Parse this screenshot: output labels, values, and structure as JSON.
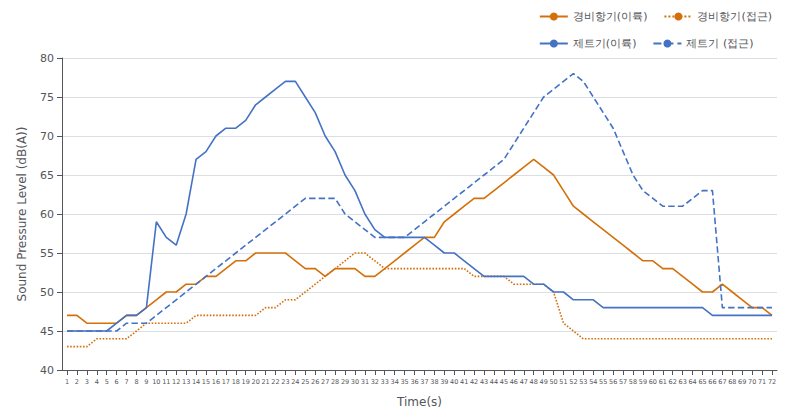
{
  "chart_data": {
    "type": "line",
    "xlabel": "Time(s)",
    "ylabel": "Sound Pressure Level (dB(A))",
    "x": [
      1,
      2,
      3,
      4,
      5,
      6,
      7,
      8,
      9,
      10,
      11,
      12,
      13,
      14,
      15,
      16,
      17,
      18,
      19,
      20,
      21,
      22,
      23,
      24,
      25,
      26,
      27,
      28,
      29,
      30,
      31,
      32,
      33,
      34,
      35,
      36,
      37,
      38,
      39,
      40,
      41,
      42,
      43,
      44,
      45,
      46,
      47,
      48,
      49,
      50,
      51,
      52,
      53,
      54,
      55,
      56,
      57,
      58,
      59,
      60,
      61,
      62,
      63,
      64,
      65,
      66,
      67,
      68,
      69,
      70,
      71,
      72
    ],
    "xlim": [
      0.5,
      72.5
    ],
    "xticks": [
      1,
      2,
      3,
      4,
      5,
      6,
      7,
      8,
      9,
      10,
      11,
      12,
      13,
      14,
      15,
      16,
      17,
      18,
      19,
      20,
      21,
      22,
      23,
      24,
      25,
      26,
      27,
      28,
      29,
      30,
      31,
      32,
      33,
      34,
      35,
      36,
      37,
      38,
      39,
      40,
      41,
      42,
      43,
      44,
      45,
      46,
      47,
      48,
      49,
      50,
      51,
      52,
      53,
      54,
      55,
      56,
      57,
      58,
      59,
      60,
      61,
      62,
      63,
      64,
      65,
      66,
      67,
      68,
      69,
      70,
      71,
      72
    ],
    "ylim": [
      40,
      80
    ],
    "yticks": [
      40,
      45,
      50,
      55,
      60,
      65,
      70,
      75,
      80
    ],
    "grid": true,
    "legend": "upper right",
    "series": [
      {
        "name": "경비항기(이륙)",
        "color": "#D4700A",
        "line_style": "solid",
        "values": [
          47,
          47,
          46,
          46,
          46,
          46,
          47,
          47,
          48,
          49,
          50,
          50,
          51,
          51,
          52,
          52,
          53,
          54,
          54,
          55,
          55,
          55,
          55,
          54,
          53,
          53,
          52,
          53,
          53,
          53,
          52,
          52,
          53,
          54,
          55,
          56,
          57,
          57,
          59,
          60,
          61,
          62,
          62,
          63,
          64,
          65,
          66,
          67,
          66,
          65,
          63,
          61,
          60,
          59,
          58,
          57,
          56,
          55,
          54,
          54,
          53,
          53,
          52,
          51,
          50,
          50,
          51,
          50,
          49,
          48,
          48,
          47
        ]
      },
      {
        "name": "경비항기(접근)",
        "color": "#D4700A",
        "line_style": "dotted",
        "values": [
          43,
          43,
          43,
          44,
          44,
          44,
          44,
          45,
          46,
          46,
          46,
          46,
          46,
          47,
          47,
          47,
          47,
          47,
          47,
          47,
          48,
          48,
          49,
          49,
          50,
          51,
          52,
          53,
          54,
          55,
          55,
          54,
          53,
          53,
          53,
          53,
          53,
          53,
          53,
          53,
          53,
          52,
          52,
          52,
          52,
          51,
          51,
          51,
          51,
          50,
          46,
          45,
          44,
          44,
          44,
          44,
          44,
          44,
          44,
          44,
          44,
          44,
          44,
          44,
          44,
          44,
          44,
          44,
          44,
          44,
          44,
          44
        ]
      },
      {
        "name": "제트기(이륙)",
        "color": "#4472C4",
        "line_style": "solid",
        "values": [
          45,
          45,
          45,
          45,
          45,
          46,
          47,
          47,
          48,
          59,
          57,
          56,
          60,
          67,
          68,
          70,
          71,
          71,
          72,
          74,
          75,
          76,
          77,
          77,
          75,
          73,
          70,
          68,
          65,
          63,
          60,
          58,
          57,
          57,
          57,
          57,
          57,
          56,
          55,
          55,
          54,
          53,
          52,
          52,
          52,
          52,
          52,
          51,
          51,
          50,
          50,
          49,
          49,
          49,
          48,
          48,
          48,
          48,
          48,
          48,
          48,
          48,
          48,
          48,
          48,
          47,
          47,
          47,
          47,
          47,
          47,
          47
        ]
      },
      {
        "name": "제트기 (접근)",
        "color": "#4472C4",
        "line_style": "dashed",
        "values": [
          45,
          45,
          45,
          45,
          45,
          45,
          46,
          46,
          46,
          47,
          48,
          49,
          50,
          51,
          52,
          53,
          54,
          55,
          56,
          57,
          58,
          59,
          60,
          61,
          62,
          62,
          62,
          62,
          60,
          59,
          58,
          57,
          57,
          57,
          57,
          58,
          59,
          60,
          61,
          62,
          63,
          64,
          65,
          66,
          67,
          69,
          71,
          73,
          75,
          76,
          77,
          78,
          77,
          75,
          73,
          71,
          68,
          65,
          63,
          62,
          61,
          61,
          61,
          62,
          63,
          63,
          48,
          48,
          48,
          48,
          48,
          48
        ]
      }
    ]
  }
}
